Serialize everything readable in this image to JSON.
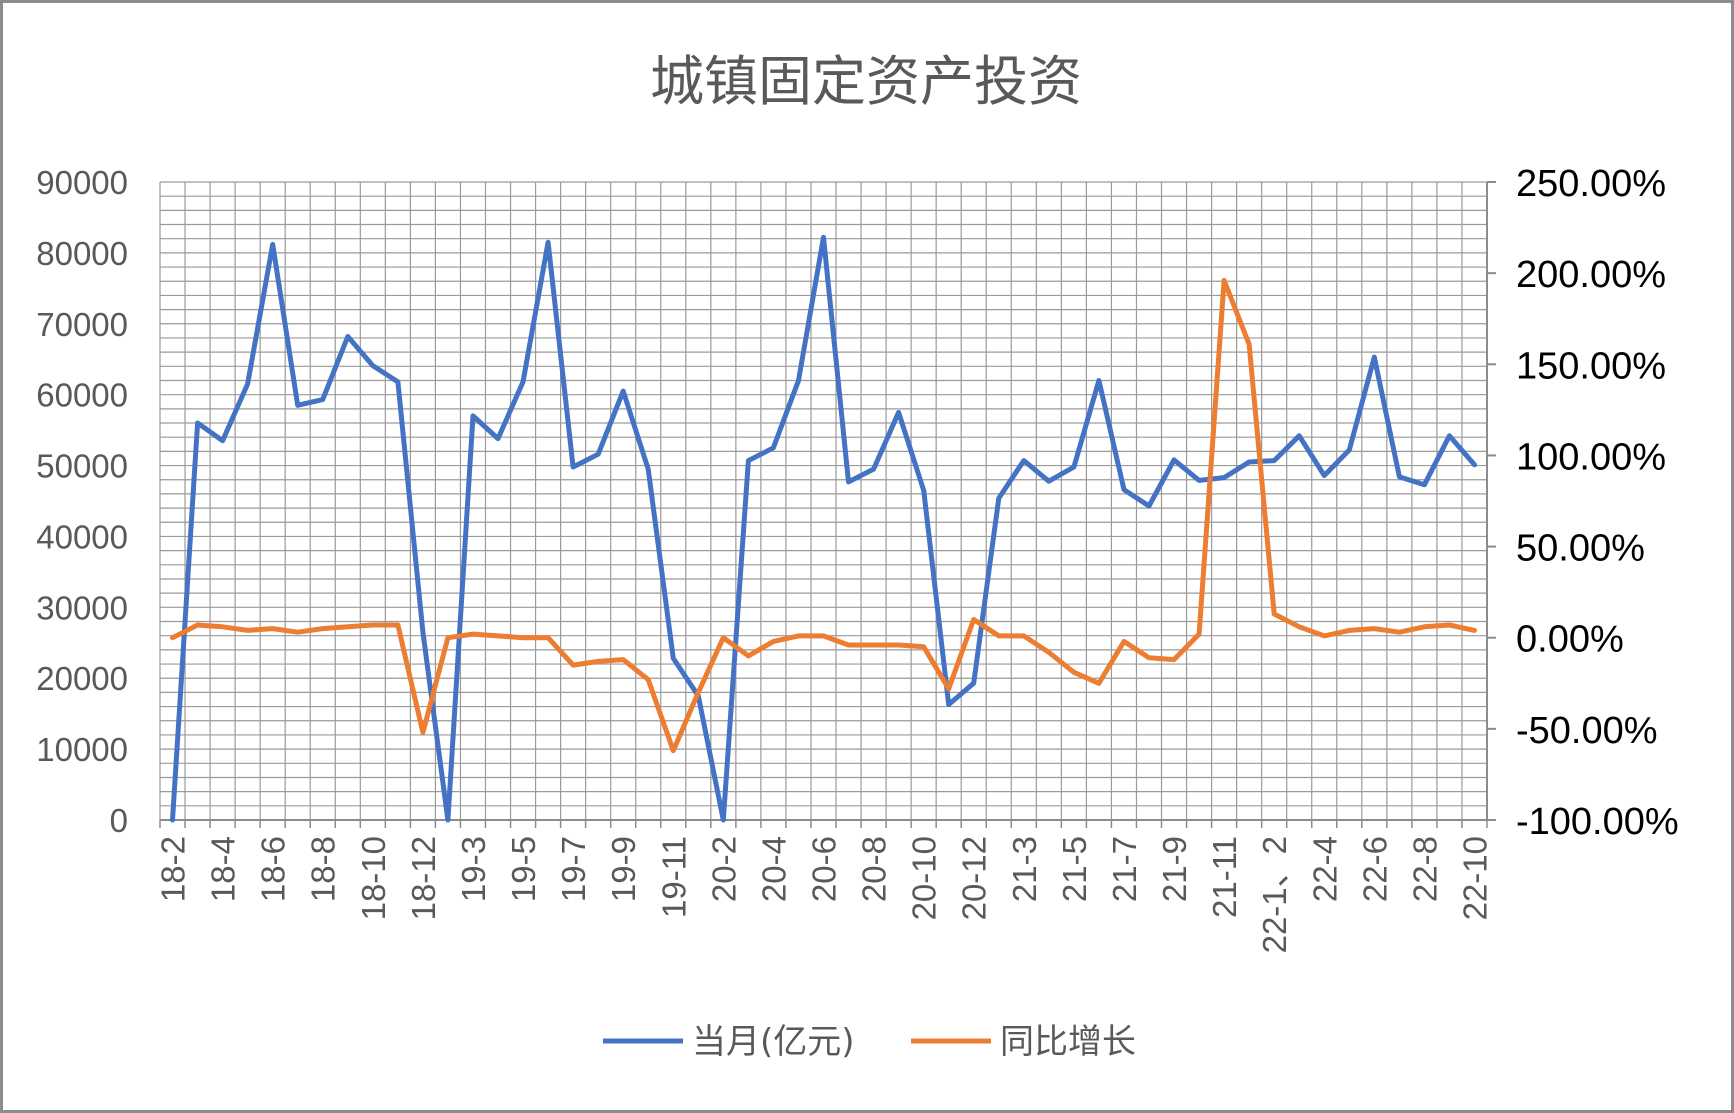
{
  "chart_data": {
    "type": "line",
    "title": "城镇固定资产投资",
    "categories": [
      "18-2",
      "18-3",
      "18-4",
      "18-5",
      "18-6",
      "18-7",
      "18-8",
      "18-9",
      "18-10",
      "18-11",
      "18-12",
      "19-1",
      "19-3",
      "19-4",
      "19-5",
      "19-6",
      "19-7",
      "19-8",
      "19-9",
      "19-10",
      "19-11",
      "19-12",
      "20-2",
      "20-3",
      "20-4",
      "20-5",
      "20-6",
      "20-7",
      "20-8",
      "20-9",
      "20-10",
      "20-11",
      "20-12",
      "21-2",
      "21-3",
      "21-4",
      "21-5",
      "21-6",
      "21-7",
      "21-8",
      "21-9",
      "21-10",
      "21-11",
      "21-12",
      "22-1、2",
      "22-3",
      "22-4",
      "22-5",
      "22-6",
      "22-7",
      "22-8",
      "22-9",
      "22-10"
    ],
    "xtick_labels": [
      "18-2",
      "18-4",
      "18-6",
      "18-8",
      "18-10",
      "18-12",
      "19-3",
      "19-5",
      "19-7",
      "19-9",
      "19-11",
      "20-2",
      "20-4",
      "20-6",
      "20-8",
      "20-10",
      "20-12",
      "21-3",
      "21-5",
      "21-7",
      "21-9",
      "21-11",
      "22-1、2",
      "22-4",
      "22-6",
      "22-8",
      "22-10"
    ],
    "xtick_indices": [
      0,
      2,
      4,
      6,
      8,
      10,
      12,
      14,
      16,
      18,
      20,
      22,
      24,
      26,
      28,
      30,
      32,
      34,
      36,
      38,
      40,
      42,
      44,
      46,
      48,
      50,
      52
    ],
    "series": [
      {
        "name": "当月(亿元)",
        "axis": "left",
        "color": "#4472C4",
        "values": [
          0,
          56000,
          53500,
          61500,
          81200,
          58500,
          59300,
          68200,
          64100,
          61800,
          26500,
          0,
          57000,
          53800,
          61800,
          81500,
          49800,
          51600,
          60500,
          49500,
          22800,
          17500,
          0,
          50700,
          52500,
          62000,
          82200,
          47700,
          49500,
          57500,
          46500,
          16300,
          19300,
          45400,
          50700,
          47800,
          49800,
          62000,
          46600,
          44300,
          50800,
          47900,
          48300,
          50500,
          50700,
          54200,
          48600,
          52200,
          65300,
          48400,
          47300,
          54200,
          50100
        ]
      },
      {
        "name": "同比增长",
        "axis": "right",
        "color": "#ED7D31",
        "values": [
          0,
          0.07,
          0.06,
          0.04,
          0.05,
          0.03,
          0.05,
          0.06,
          0.07,
          0.07,
          -0.52,
          0.0,
          0.02,
          0.01,
          0.0,
          0.0,
          -0.15,
          -0.13,
          -0.12,
          -0.23,
          -0.62,
          -0.3,
          0.0,
          -0.1,
          -0.02,
          0.01,
          0.01,
          -0.04,
          -0.04,
          -0.04,
          -0.05,
          -0.28,
          0.1,
          0.01,
          0.01,
          -0.08,
          -0.19,
          -0.25,
          -0.02,
          -0.11,
          -0.12,
          0.02,
          1.96,
          1.61,
          0.13,
          0.06,
          0.01,
          0.04,
          0.05,
          0.03,
          0.06,
          0.07,
          0.04
        ]
      }
    ],
    "y_left": {
      "min": 0,
      "max": 90000,
      "step": 10000,
      "ticks": [
        "0",
        "10000",
        "20000",
        "30000",
        "40000",
        "50000",
        "60000",
        "70000",
        "80000",
        "90000"
      ]
    },
    "y_right": {
      "min": -1.0,
      "max": 2.5,
      "step": 0.5,
      "ticks": [
        "-100.00%",
        "-50.00%",
        "0.00%",
        "50.00%",
        "100.00%",
        "150.00%",
        "200.00%",
        "250.00%"
      ]
    },
    "grid": true,
    "legend_position": "bottom"
  },
  "colors": {
    "grid": "#9a9a9a",
    "axis": "#8c8c8c",
    "frame": "#8c8c8c"
  }
}
